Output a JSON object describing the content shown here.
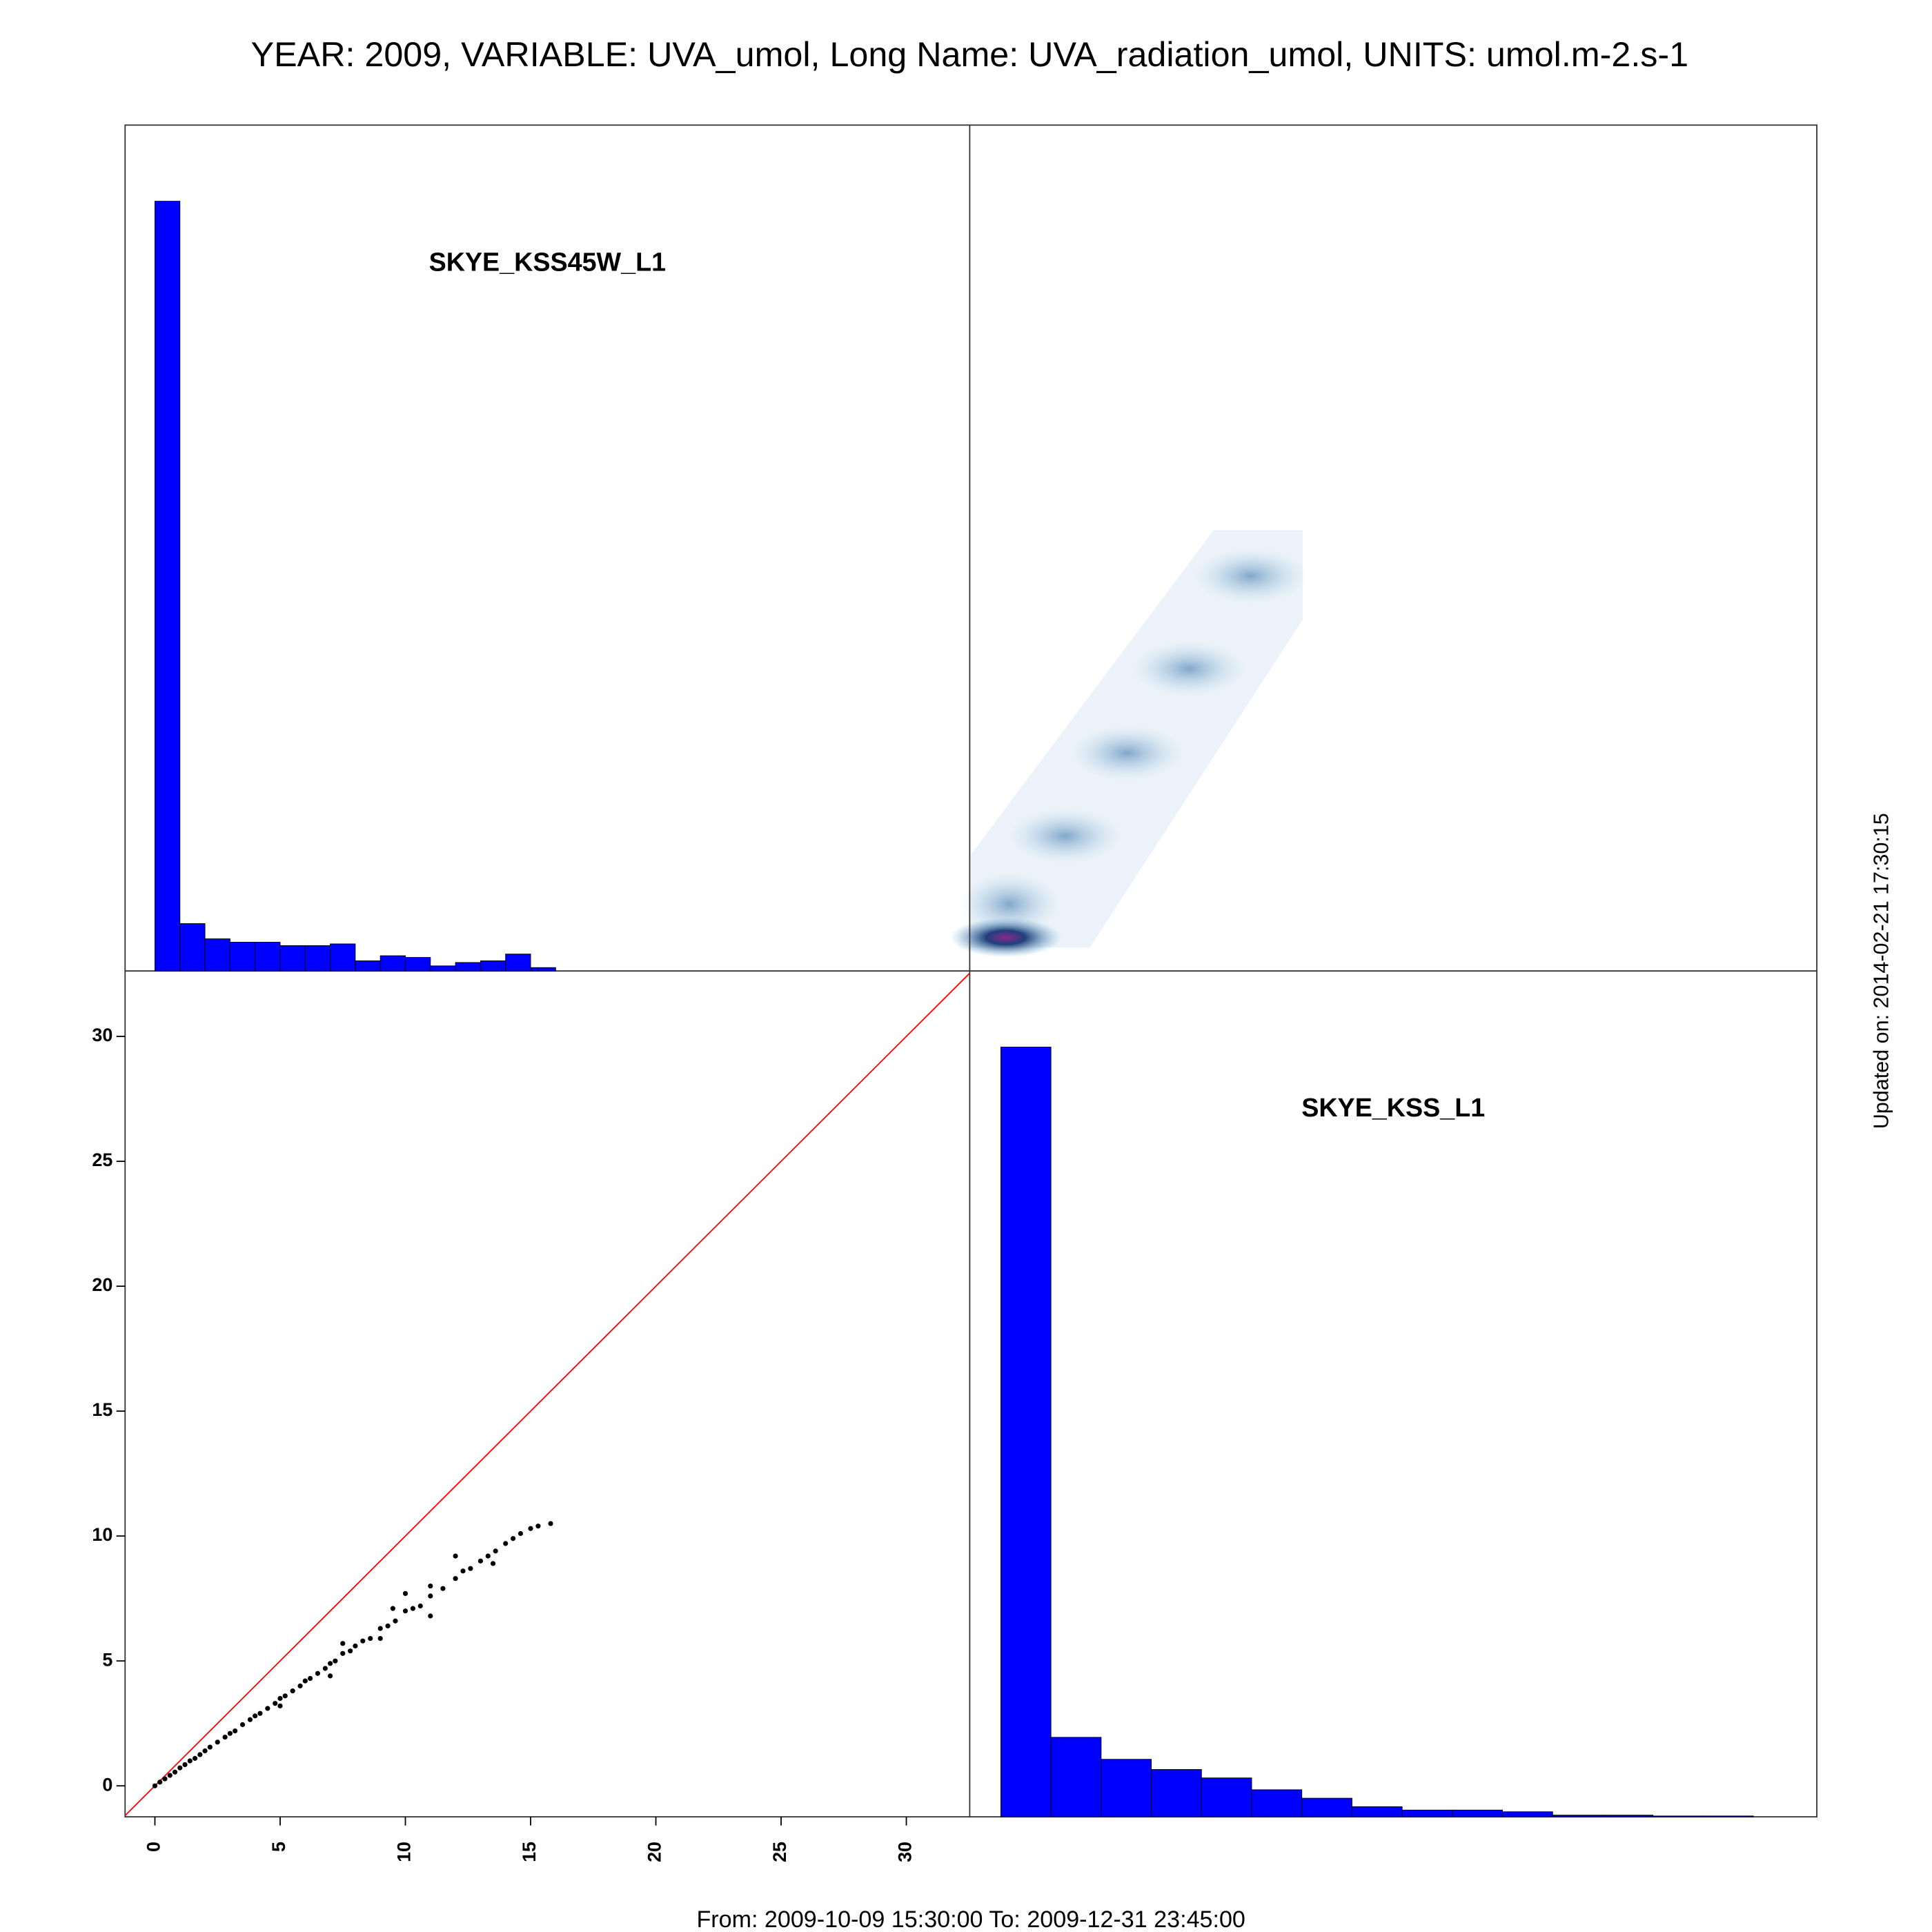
{
  "title": "YEAR: 2009, VARIABLE: UVA_umol, Long Name: UVA_radiation_umol, UNITS: umol.m-2.s-1",
  "footer": "From: 2009-10-09 15:30:00 To: 2009-12-31 23:45:00",
  "side_note": "Updated on: 2014-02-21 17:30:15",
  "chart_data": [
    {
      "type": "histogram",
      "title": "SKYE_KSS45W_L1",
      "color": "#0000ff",
      "bins": [
        0,
        1,
        2,
        3,
        4,
        5,
        6,
        7,
        8,
        9,
        10,
        11,
        12,
        13,
        14,
        15,
        16
      ],
      "counts": [
        455,
        28,
        19,
        17,
        17,
        15,
        15,
        16,
        6,
        9,
        8,
        3,
        5,
        6,
        10,
        2
      ],
      "xlim": [
        -1.19,
        32.53
      ],
      "ylim": [
        0,
        500
      ]
    },
    {
      "type": "scatter",
      "color": "#000000",
      "line_color": "#ff0000",
      "x": [
        0,
        0.2,
        0.4,
        0.6,
        0.8,
        1,
        1.2,
        1.4,
        1.6,
        1.8,
        2,
        2.2,
        2.5,
        2.8,
        3,
        3.2,
        3.5,
        3.8,
        4,
        4.2,
        4.5,
        4.8,
        5,
        5.2,
        5.5,
        5.8,
        6,
        6.2,
        6.5,
        6.8,
        7,
        7.2,
        7.5,
        7.8,
        8,
        8.3,
        8.6,
        9,
        9.3,
        9.6,
        10,
        10.3,
        10.6,
        11,
        11.5,
        12,
        12.3,
        12.6,
        13,
        13.3,
        13.6,
        14,
        14.3,
        14.6,
        15,
        15.3,
        15.8,
        7.5,
        9.5,
        10,
        12,
        11,
        5,
        7,
        9,
        11,
        13.5
      ],
      "y": [
        0,
        0.15,
        0.28,
        0.42,
        0.55,
        0.72,
        0.85,
        1.0,
        1.1,
        1.25,
        1.4,
        1.55,
        1.75,
        1.95,
        2.1,
        2.2,
        2.45,
        2.65,
        2.8,
        2.9,
        3.1,
        3.3,
        3.5,
        3.6,
        3.8,
        4.0,
        4.2,
        4.3,
        4.5,
        4.7,
        4.9,
        5.0,
        5.3,
        5.4,
        5.6,
        5.8,
        5.9,
        6.3,
        6.4,
        6.6,
        7.0,
        7.1,
        7.2,
        7.6,
        7.9,
        8.3,
        8.6,
        8.7,
        9.0,
        9.2,
        9.4,
        9.7,
        9.9,
        10.1,
        10.3,
        10.4,
        10.5,
        5.7,
        7.1,
        7.7,
        9.2,
        8.0,
        3.2,
        4.4,
        5.9,
        6.8,
        8.9
      ],
      "xlim": [
        -1.19,
        32.53
      ],
      "ylim": [
        -1.24,
        32.62
      ],
      "xticks": [
        0,
        5,
        10,
        15,
        20,
        25,
        30
      ],
      "yticks": [
        0,
        5,
        10,
        15,
        20,
        25,
        30
      ]
    },
    {
      "type": "histogram",
      "title": "SKYE_KSS_L1",
      "color": "#0000ff",
      "bins": [
        0,
        2,
        4,
        6,
        8,
        10,
        12,
        14,
        16,
        18,
        20,
        22,
        24,
        26,
        28,
        30
      ],
      "counts": [
        455,
        47,
        34,
        28,
        23,
        16,
        11,
        6,
        4,
        4,
        3,
        1,
        1,
        0.5,
        0.5
      ],
      "xlim": [
        -1.19,
        32.53
      ],
      "ylim": [
        0,
        500
      ]
    }
  ]
}
